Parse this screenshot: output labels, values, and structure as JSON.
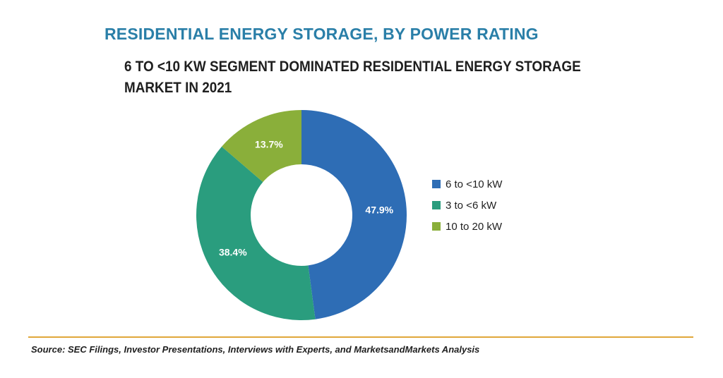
{
  "title": "RESIDENTIAL ENERGY STORAGE, BY POWER RATING",
  "subtitle": "6 TO <10 KW SEGMENT DOMINATED RESIDENTIAL ENERGY STORAGE MARKET IN 2021",
  "source": "Source: SEC Filings, Investor Presentations, Interviews with Experts, and MarketsandMarkets Analysis",
  "chart_data": {
    "type": "pie",
    "style": "donut",
    "title": "RESIDENTIAL ENERGY STORAGE, BY POWER RATING",
    "legend_position": "right",
    "slices": [
      {
        "label": "6 to <10 kW",
        "value": 47.9,
        "value_label": "47.9%",
        "color": "#2e6db5"
      },
      {
        "label": "3 to <6 kW",
        "value": 38.4,
        "value_label": "38.4%",
        "color": "#2a9d7e"
      },
      {
        "label": "10 to 20 kW",
        "value": 13.7,
        "value_label": "13.7%",
        "color": "#8aaf3a"
      }
    ]
  }
}
